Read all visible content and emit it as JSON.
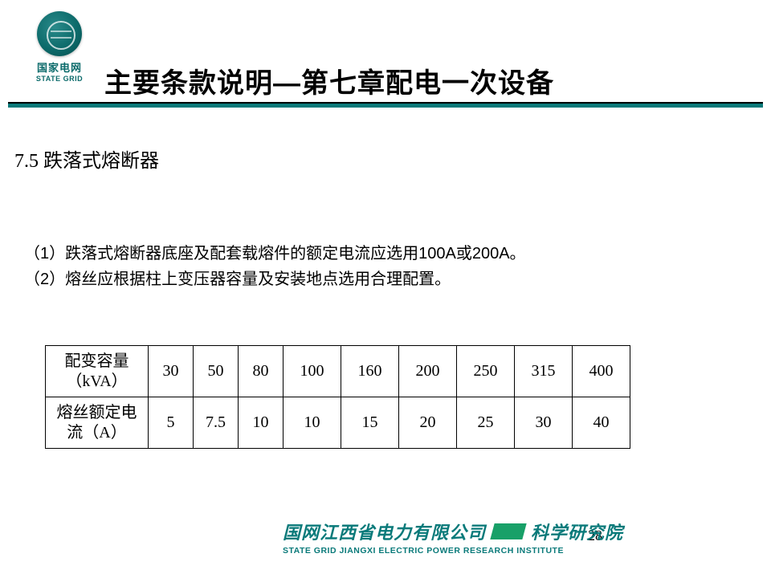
{
  "logo": {
    "cn": "国家电网",
    "en": "STATE GRID"
  },
  "title": "主要条款说明—第七章配电一次设备",
  "section": "7.5 跌落式熔断器",
  "body": {
    "line1": "（1）跌落式熔断器底座及配套载熔件的额定电流应选用100A或200A。",
    "line2": "（2）熔丝应根据柱上变压器容量及安装地点选用合理配置。"
  },
  "table": {
    "row1_head_l1": "配变容量",
    "row1_head_l2": "（kVA）",
    "row2_head_l1": "熔丝额定电",
    "row2_head_l2": "流（A）",
    "kva": [
      "30",
      "50",
      "80",
      "100",
      "160",
      "200",
      "250",
      "315",
      "400"
    ],
    "fuse_a": [
      "5",
      "7.5",
      "10",
      "10",
      "15",
      "20",
      "25",
      "30",
      "40"
    ]
  },
  "footer": {
    "cn_left": "国网江西省电力有限公司",
    "cn_right": "科学研究院",
    "en": "STATE GRID JIANGXI ELECTRIC POWER RESEARCH INSTITUTE"
  },
  "page_number": "28",
  "colors": {
    "teal": "#0a7a7a",
    "green_bar": "#18a068",
    "text": "#000000",
    "bg": "#ffffff"
  }
}
